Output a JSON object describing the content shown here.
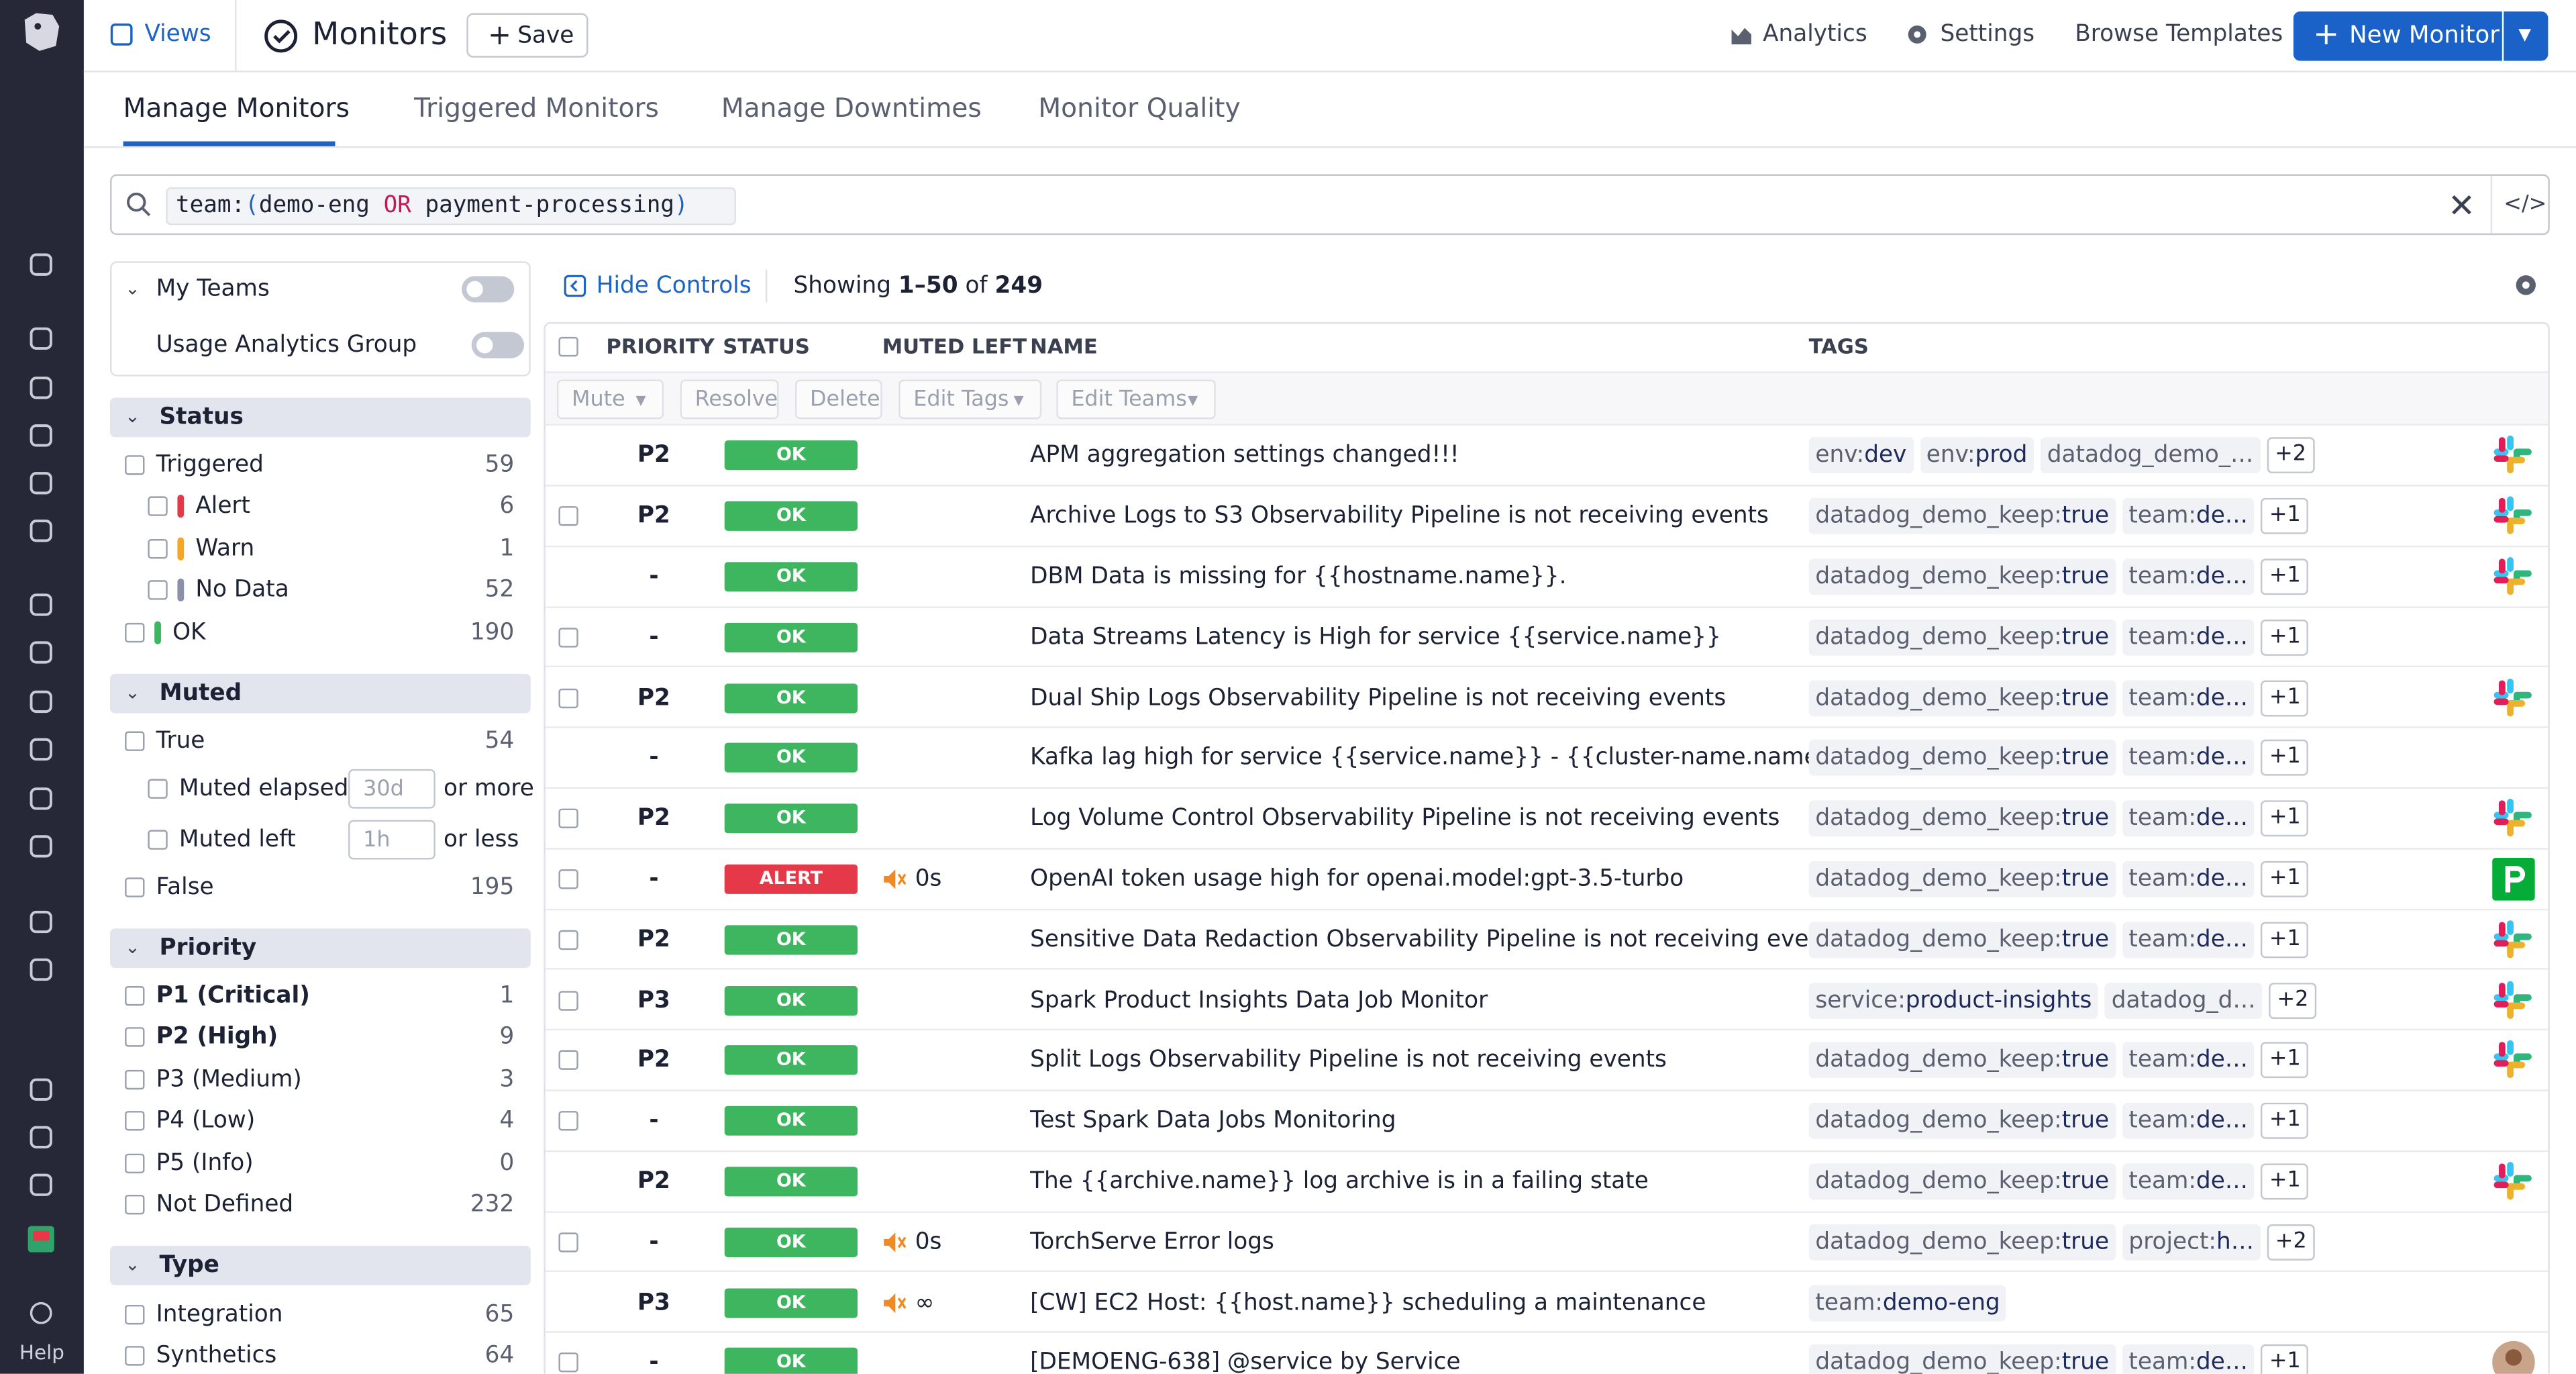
{
  "nav": {
    "help": "Help"
  },
  "header": {
    "views": "Views",
    "title": "Monitors",
    "save": "Save",
    "analytics": "Analytics",
    "settings": "Settings",
    "browse": "Browse Templates",
    "new_monitor": "New Monitor"
  },
  "tabs": [
    "Manage Monitors",
    "Triggered Monitors",
    "Manage Downtimes",
    "Monitor Quality"
  ],
  "search": {
    "key": "team:",
    "open": "(",
    "v1": "demo-eng",
    "op": " OR ",
    "v2": "payment-processing",
    "close": ")"
  },
  "sidebar": {
    "my_teams": "My Teams",
    "usage": "Usage Analytics Group",
    "sections": [
      {
        "title": "Status",
        "items": [
          {
            "label": "Triggered",
            "count": 59,
            "level": 0
          },
          {
            "label": "Alert",
            "count": 6,
            "level": 1,
            "color": "#e5394a"
          },
          {
            "label": "Warn",
            "count": 1,
            "level": 1,
            "color": "#f5a623"
          },
          {
            "label": "No Data",
            "count": 52,
            "level": 1,
            "color": "#8b8fa8"
          },
          {
            "label": "OK",
            "count": 190,
            "level": 0,
            "color": "#3eb55f"
          }
        ]
      },
      {
        "title": "Muted",
        "items": [
          {
            "label": "True",
            "count": 54,
            "level": 0
          },
          {
            "label": "Muted elapsed",
            "placeholder": "30d",
            "suffix": "or more",
            "level": 1
          },
          {
            "label": "Muted left",
            "placeholder": "1h",
            "suffix": "or less",
            "level": 1
          },
          {
            "label": "False",
            "count": 195,
            "level": 0
          }
        ]
      },
      {
        "title": "Priority",
        "items": [
          {
            "label": "P1 (Critical)",
            "count": 1,
            "level": 0,
            "emph": true
          },
          {
            "label": "P2 (High)",
            "count": 9,
            "level": 0,
            "emph": true
          },
          {
            "label": "P3 (Medium)",
            "count": 3,
            "level": 0
          },
          {
            "label": "P4 (Low)",
            "count": 4,
            "level": 0
          },
          {
            "label": "P5 (Info)",
            "count": 0,
            "level": 0
          },
          {
            "label": "Not Defined",
            "count": 232,
            "level": 0
          }
        ]
      },
      {
        "title": "Type",
        "items": [
          {
            "label": "Integration",
            "count": 65,
            "level": 0
          },
          {
            "label": "Synthetics",
            "count": 64,
            "level": 0
          }
        ]
      }
    ]
  },
  "controls": {
    "hide": "Hide Controls",
    "showing": "Showing ",
    "range": "1–50",
    "of": " of ",
    "total": 249
  },
  "table": {
    "headers": [
      "PRIORITY",
      "STATUS",
      "MUTED LEFT",
      "NAME",
      "TAGS"
    ],
    "actions": [
      "Mute",
      "Resolve",
      "Delete",
      "Edit Tags",
      "Edit Teams"
    ],
    "rows": [
      {
        "checkbox": false,
        "priority": "P2",
        "status": "OK",
        "name": "APM aggregation settings changed!!!",
        "tags": [
          [
            "env:",
            "dev"
          ],
          [
            "env:",
            "prod"
          ],
          [
            "datadog_demo_…",
            ""
          ]
        ],
        "more": "+2",
        "icon": "slack"
      },
      {
        "checkbox": true,
        "priority": "P2",
        "status": "OK",
        "name": "Archive Logs to S3 Observability Pipeline is not receiving events",
        "tags": [
          [
            "datadog_demo_keep:",
            "true"
          ],
          [
            "team:",
            "de…"
          ]
        ],
        "more": "+1",
        "icon": "slack"
      },
      {
        "checkbox": false,
        "priority": "-",
        "status": "OK",
        "name": "DBM Data is missing for {{hostname.name}}.",
        "tags": [
          [
            "datadog_demo_keep:",
            "true"
          ],
          [
            "team:",
            "de…"
          ]
        ],
        "more": "+1",
        "icon": "slack"
      },
      {
        "checkbox": true,
        "priority": "-",
        "status": "OK",
        "name": "Data Streams Latency is High for service {{service.name}}",
        "tags": [
          [
            "datadog_demo_keep:",
            "true"
          ],
          [
            "team:",
            "de…"
          ]
        ],
        "more": "+1"
      },
      {
        "checkbox": true,
        "priority": "P2",
        "status": "OK",
        "name": "Dual Ship Logs Observability Pipeline is not receiving events",
        "tags": [
          [
            "datadog_demo_keep:",
            "true"
          ],
          [
            "team:",
            "de…"
          ]
        ],
        "more": "+1",
        "icon": "slack"
      },
      {
        "checkbox": false,
        "priority": "-",
        "status": "OK",
        "name": "Kafka lag high for service {{service.name}} - {{cluster-name.name}} - {{c…",
        "tags": [
          [
            "datadog_demo_keep:",
            "true"
          ],
          [
            "team:",
            "de…"
          ]
        ],
        "more": "+1"
      },
      {
        "checkbox": true,
        "priority": "P2",
        "status": "OK",
        "name": "Log Volume Control Observability Pipeline is not receiving events",
        "tags": [
          [
            "datadog_demo_keep:",
            "true"
          ],
          [
            "team:",
            "de…"
          ]
        ],
        "more": "+1",
        "icon": "slack"
      },
      {
        "checkbox": true,
        "priority": "-",
        "status": "ALERT",
        "muted": "0s",
        "name": "OpenAI token usage high for openai.model:gpt-3.5-turbo",
        "tags": [
          [
            "datadog_demo_keep:",
            "true"
          ],
          [
            "team:",
            "de…"
          ]
        ],
        "more": "+1",
        "icon": "pager"
      },
      {
        "checkbox": true,
        "priority": "P2",
        "status": "OK",
        "name": "Sensitive Data Redaction Observability Pipeline is not receiving events",
        "tags": [
          [
            "datadog_demo_keep:",
            "true"
          ],
          [
            "team:",
            "de…"
          ]
        ],
        "more": "+1",
        "icon": "slack"
      },
      {
        "checkbox": true,
        "priority": "P3",
        "status": "OK",
        "name": "Spark Product Insights Data Job Monitor",
        "tags": [
          [
            "service:",
            "product-insights"
          ],
          [
            "datadog_d…",
            ""
          ]
        ],
        "more": "+2",
        "icon": "slack"
      },
      {
        "checkbox": true,
        "priority": "P2",
        "status": "OK",
        "name": "Split Logs Observability Pipeline is not receiving events",
        "tags": [
          [
            "datadog_demo_keep:",
            "true"
          ],
          [
            "team:",
            "de…"
          ]
        ],
        "more": "+1",
        "icon": "slack"
      },
      {
        "checkbox": true,
        "priority": "-",
        "status": "OK",
        "name": "Test Spark Data Jobs Monitoring",
        "tags": [
          [
            "datadog_demo_keep:",
            "true"
          ],
          [
            "team:",
            "de…"
          ]
        ],
        "more": "+1"
      },
      {
        "checkbox": false,
        "priority": "P2",
        "status": "OK",
        "name": "The {{archive.name}} log archive is in a failing state",
        "tags": [
          [
            "datadog_demo_keep:",
            "true"
          ],
          [
            "team:",
            "de…"
          ]
        ],
        "more": "+1",
        "icon": "slack"
      },
      {
        "checkbox": true,
        "priority": "-",
        "status": "OK",
        "muted": "0s",
        "name": "TorchServe Error logs",
        "tags": [
          [
            "datadog_demo_keep:",
            "true"
          ],
          [
            "project:",
            "h…"
          ]
        ],
        "more": "+2"
      },
      {
        "checkbox": false,
        "priority": "P3",
        "status": "OK",
        "muted": "∞",
        "name": "[CW] EC2 Host: {{host.name}} scheduling a maintenance",
        "tags": [
          [
            "team:",
            "demo-eng"
          ]
        ]
      },
      {
        "checkbox": true,
        "priority": "-",
        "status": "OK",
        "name": "[DEMOENG-638] @service by Service",
        "tags": [
          [
            "datadog_demo_keep:",
            "true"
          ],
          [
            "team:",
            "de…"
          ]
        ],
        "more": "+1",
        "icon": "avatar"
      }
    ]
  }
}
